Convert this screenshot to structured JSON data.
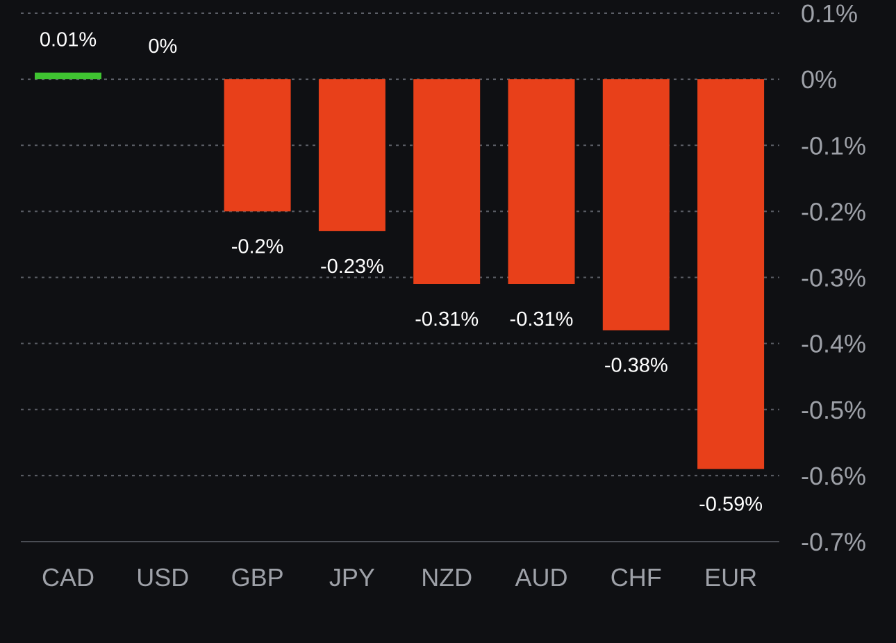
{
  "chart_data": {
    "type": "bar",
    "categories": [
      "CAD",
      "USD",
      "GBP",
      "JPY",
      "NZD",
      "AUD",
      "CHF",
      "EUR"
    ],
    "values": [
      0.01,
      0,
      -0.2,
      -0.23,
      -0.31,
      -0.31,
      -0.38,
      -0.59
    ],
    "value_labels": [
      "0.01%",
      "0%",
      "-0.2%",
      "-0.23%",
      "-0.31%",
      "-0.31%",
      "-0.38%",
      "-0.59%"
    ],
    "yticks": [
      0.1,
      0,
      -0.1,
      -0.2,
      -0.3,
      -0.4,
      -0.5,
      -0.6,
      -0.7
    ],
    "ytick_labels": [
      "0.1%",
      "0%",
      "-0.1%",
      "-0.2%",
      "-0.3%",
      "-0.4%",
      "-0.5%",
      "-0.6%",
      "-0.7%"
    ],
    "ylim": [
      -0.7,
      0.1
    ],
    "grid": true,
    "y_axis_position": "right",
    "colors": {
      "positive": "#3fc431",
      "negative": "#e8401a",
      "background": "#0f1013",
      "grid": "#5b5e66",
      "tick_text": "#9ea1a8",
      "label_text": "#ffffff"
    }
  }
}
